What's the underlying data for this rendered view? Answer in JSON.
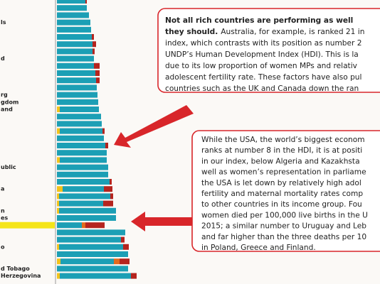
{
  "chart_data": {
    "type": "bar",
    "orientation": "horizontal",
    "stacked": true,
    "categories": [
      null,
      null,
      null,
      "ls",
      null,
      null,
      null,
      null,
      "d",
      null,
      null,
      null,
      null,
      "rg",
      "gdom",
      "and",
      null,
      null,
      null,
      null,
      null,
      null,
      null,
      "ublic",
      null,
      null,
      "a",
      null,
      null,
      "n",
      "es",
      null,
      null,
      null,
      "o",
      null,
      null,
      "d Tobago",
      "Herzegovina"
    ],
    "highlight": 31,
    "series": [
      {
        "color": "#f2c21b",
        "values": [
          0,
          0,
          0,
          0,
          0,
          0,
          0,
          0,
          0,
          0,
          0,
          0,
          0,
          0,
          0,
          4,
          0,
          0,
          4,
          0,
          0,
          0,
          4,
          0,
          0,
          0,
          8,
          3,
          3,
          3,
          0,
          0,
          0,
          0,
          3,
          0,
          5,
          0,
          4
        ]
      },
      {
        "color": "#1c9fb5",
        "values": [
          40,
          42,
          45,
          47,
          48,
          49,
          50,
          50,
          52,
          52,
          54,
          55,
          56,
          57,
          58,
          55,
          62,
          63,
          60,
          66,
          68,
          70,
          66,
          72,
          72,
          74,
          58,
          72,
          62,
          80,
          83,
          35,
          96,
          90,
          90,
          100,
          75,
          100,
          100
        ]
      },
      {
        "color": "#e36a1c",
        "values": [
          0,
          0,
          0,
          0,
          0,
          0,
          0,
          0,
          0,
          0,
          0,
          0,
          0,
          0,
          0,
          0,
          0,
          0,
          0,
          0,
          0,
          0,
          0,
          0,
          0,
          0,
          0,
          0,
          0,
          0,
          0,
          5,
          0,
          0,
          0,
          0,
          8,
          0,
          0
        ]
      },
      {
        "color": "#b5241e",
        "values": [
          2,
          0,
          0,
          0,
          0,
          3,
          5,
          3,
          0,
          8,
          6,
          5,
          0,
          0,
          0,
          0,
          0,
          0,
          3,
          0,
          4,
          0,
          0,
          0,
          0,
          3,
          12,
          4,
          14,
          0,
          0,
          27,
          0,
          5,
          8,
          0,
          14,
          0,
          8
        ]
      }
    ]
  },
  "annotations": [
    {
      "lines": [
        {
          "bold": "Not all rich countries are performing as well"
        },
        {
          "bold": "they should.",
          "text": "Australia, for example, is ranked 21 in"
        },
        {
          "text": "index, which contrasts with its position as number 2"
        },
        {
          "text": "UNDP’s Human Development Index (HDI). This is la"
        },
        {
          "text": "due to its low proportion of women MPs and relativ"
        },
        {
          "text": "adolescent fertility rate. These factors have also pul"
        },
        {
          "text": "countries such as the UK and Canada down the ran"
        }
      ]
    },
    {
      "lines": [
        {
          "text": "While the USA, the world’s biggest econom"
        },
        {
          "text": "ranks at number 8 in the HDI, it is at positi"
        },
        {
          "text": "in our index, below Algeria and Kazakhsta"
        },
        {
          "text": "well as women’s representation in parliame"
        },
        {
          "text": "the USA is let down by relatively high adol"
        },
        {
          "text": "fertility and maternal mortality rates comp"
        },
        {
          "text": "to other countries in its income group. Fou"
        },
        {
          "text": "women died per 100,000 live births in the U"
        },
        {
          "text": "2015; a similar number to Uruguay and Leb"
        },
        {
          "text": "and far higher than the three deaths per 10"
        },
        {
          "text": "in Poland, Greece and Finland."
        }
      ]
    }
  ]
}
